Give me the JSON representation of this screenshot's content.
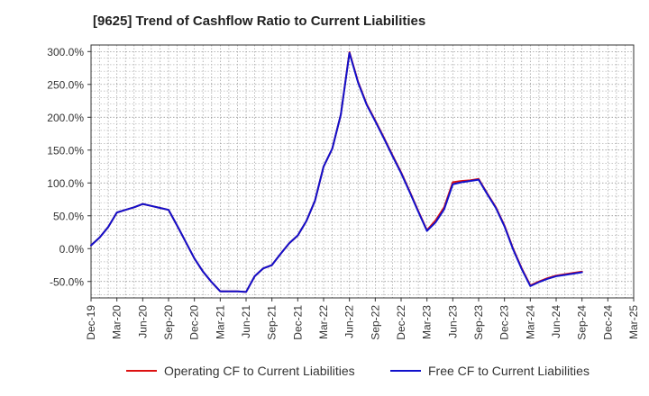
{
  "chart_data": {
    "type": "line",
    "title": "[9625]  Trend of Cashflow Ratio to Current Liabilities",
    "xlabel": "",
    "ylabel": "",
    "ylim": [
      -75,
      310
    ],
    "y_ticks": [
      300,
      250,
      200,
      150,
      100,
      50,
      0,
      -50
    ],
    "y_tick_labels": [
      "300.0%",
      "250.0%",
      "200.0%",
      "150.0%",
      "100.0%",
      "50.0%",
      "0.0%",
      "-50.0%"
    ],
    "x_ticks": [
      "Dec-19",
      "Mar-20",
      "Jun-20",
      "Sep-20",
      "Dec-20",
      "Mar-21",
      "Jun-21",
      "Sep-21",
      "Dec-21",
      "Mar-22",
      "Jun-22",
      "Sep-22",
      "Dec-22",
      "Mar-23",
      "Jun-23",
      "Sep-23",
      "Dec-23",
      "Mar-24",
      "Jun-24",
      "Sep-24",
      "Dec-24",
      "Mar-25"
    ],
    "grid": true,
    "legend_position": "bottom",
    "x": [
      "Dec-19",
      "Jan-20",
      "Feb-20",
      "Mar-20",
      "Apr-20",
      "May-20",
      "Jun-20",
      "Jul-20",
      "Aug-20",
      "Sep-20",
      "Oct-20",
      "Nov-20",
      "Dec-20",
      "Jan-21",
      "Feb-21",
      "Mar-21",
      "Apr-21",
      "May-21",
      "Jun-21",
      "Jul-21",
      "Aug-21",
      "Sep-21",
      "Oct-21",
      "Nov-21",
      "Dec-21",
      "Jan-22",
      "Feb-22",
      "Mar-22",
      "Apr-22",
      "May-22",
      "Jun-22",
      "Jul-22",
      "Aug-22",
      "Sep-22",
      "Oct-22",
      "Nov-22",
      "Dec-22",
      "Jan-23",
      "Feb-23",
      "Mar-23",
      "Apr-23",
      "May-23",
      "Jun-23",
      "Jul-23",
      "Aug-23",
      "Sep-23",
      "Oct-23",
      "Nov-23",
      "Dec-23",
      "Jan-24",
      "Feb-24",
      "Mar-24",
      "Apr-24",
      "May-24",
      "Jun-24",
      "Jul-24",
      "Aug-24",
      "Sep-24"
    ],
    "series": [
      {
        "name": "Operating CF to Current Liabilities",
        "color": "#dd1111",
        "values": [
          5,
          17,
          33,
          55,
          59,
          63,
          68,
          65,
          62,
          59,
          35,
          10,
          -15,
          -35,
          -51,
          -65,
          -65,
          -65,
          -66,
          -42,
          -30,
          -25,
          -8,
          8,
          20,
          42,
          73,
          125,
          152,
          204,
          299,
          254,
          220,
          195,
          169,
          142,
          116,
          87,
          57,
          28,
          43,
          63,
          101,
          103,
          104,
          106,
          84,
          63,
          35,
          0,
          -30,
          -56,
          -50,
          -45,
          -41,
          -39,
          -37,
          -35
        ]
      },
      {
        "name": "Free CF to Current Liabilities",
        "color": "#1111cc",
        "values": [
          5,
          17,
          33,
          55,
          59,
          63,
          68,
          65,
          62,
          59,
          35,
          10,
          -15,
          -35,
          -51,
          -65,
          -65,
          -65,
          -66,
          -42,
          -30,
          -25,
          -8,
          8,
          20,
          42,
          73,
          125,
          152,
          204,
          298,
          253,
          219,
          194,
          168,
          141,
          115,
          86,
          56,
          27,
          40,
          60,
          98,
          101,
          103,
          105,
          83,
          62,
          34,
          -1,
          -31,
          -57,
          -51,
          -46,
          -42,
          -40,
          -38,
          -36
        ]
      }
    ]
  }
}
